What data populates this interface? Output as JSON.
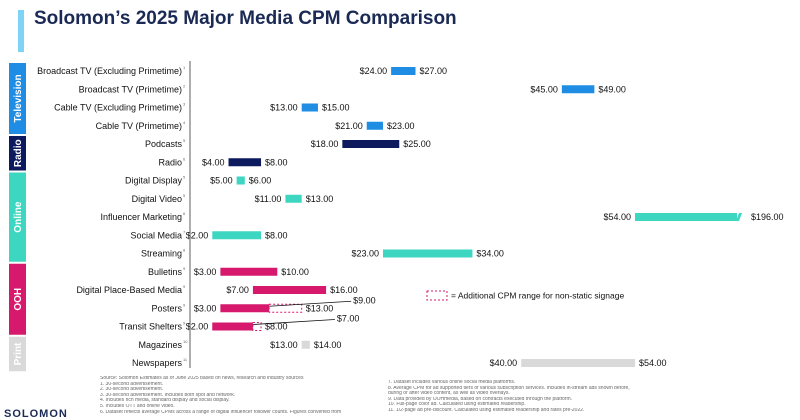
{
  "title": "Solomon’s 2025 Major Media CPM Comparison",
  "colors": {
    "tv": "#1f8de3",
    "radio": "#0d1a5e",
    "online": "#3dd6c1",
    "ooh": "#d6196c",
    "print": "#d9d9d9",
    "accent": "#7fd3f4",
    "title": "#1b2a55"
  },
  "legend": {
    "text": "= Additional CPM range for non-static signage",
    "color": "#d6196c"
  },
  "chart_data": {
    "type": "bar",
    "title": "Solomon’s 2025 Major Media CPM Comparison",
    "xlabel": "",
    "ylabel": "",
    "value_format": "USD CPM",
    "groups": [
      {
        "name": "Television",
        "color": "#1f8de3",
        "rows": [
          {
            "label": "Broadcast TV (Excluding Primetime)",
            "fn": "1",
            "low": 24.0,
            "high": 27.0,
            "low_label": "$24.00",
            "high_label": "$27.00"
          },
          {
            "label": "Broadcast TV (Primetime)",
            "fn": "2",
            "low": 45.0,
            "high": 49.0,
            "low_label": "$45.00",
            "high_label": "$49.00"
          },
          {
            "label": "Cable TV (Excluding Primetime)",
            "fn": "3",
            "low": 13.0,
            "high": 15.0,
            "low_label": "$13.00",
            "high_label": "$15.00"
          },
          {
            "label": "Cable TV (Primetime)",
            "fn": "4",
            "low": 21.0,
            "high": 23.0,
            "low_label": "$21.00",
            "high_label": "$23.00"
          }
        ]
      },
      {
        "name": "Radio",
        "color": "#0d1a5e",
        "rows": [
          {
            "label": "Podcasts",
            "fn": "5",
            "low": 18.0,
            "high": 25.0,
            "low_label": "$18.00",
            "high_label": "$25.00"
          },
          {
            "label": "Radio",
            "fn": "6",
            "low": 4.0,
            "high": 8.0,
            "low_label": "$4.00",
            "high_label": "$8.00"
          }
        ]
      },
      {
        "name": "Online",
        "color": "#3dd6c1",
        "rows": [
          {
            "label": "Digital Display",
            "fn": "5",
            "low": 5.0,
            "high": 6.0,
            "low_label": "$5.00",
            "high_label": "$6.00"
          },
          {
            "label": "Digital Video",
            "fn": "5",
            "low": 11.0,
            "high": 13.0,
            "low_label": "$11.00",
            "high_label": "$13.00"
          },
          {
            "label": "Influencer Marketing",
            "fn": "6",
            "low": 54.0,
            "high": 196.0,
            "low_label": "$54.00",
            "high_label": "$196.00",
            "broken": true
          },
          {
            "label": "Social Media",
            "fn": "7",
            "low": 2.0,
            "high": 8.0,
            "low_label": "$2.00",
            "high_label": "$8.00"
          },
          {
            "label": "Streaming",
            "fn": "8",
            "low": 23.0,
            "high": 34.0,
            "low_label": "$23.00",
            "high_label": "$34.00"
          }
        ]
      },
      {
        "name": "OOH",
        "color": "#d6196c",
        "rows": [
          {
            "label": "Bulletins",
            "fn": "9",
            "low": 3.0,
            "high": 10.0,
            "low_label": "$3.00",
            "high_label": "$10.00"
          },
          {
            "label": "Digital Place-Based Media",
            "fn": "9",
            "low": 7.0,
            "high": 16.0,
            "low_label": "$7.00",
            "high_label": "$16.00"
          },
          {
            "label": "Posters",
            "fn": "9",
            "low": 3.0,
            "high": 9.0,
            "low_label": "$3.00",
            "high_label": "$9.00",
            "ext_high": 13.0,
            "ext_label": "$13.00"
          },
          {
            "label": "Transit Shelters",
            "fn": "9",
            "low": 2.0,
            "high": 7.0,
            "low_label": "$2.00",
            "high_label": "$7.00",
            "ext_high": 8.0,
            "ext_label": "$8.00"
          }
        ]
      },
      {
        "name": "Print",
        "color": "#d9d9d9",
        "rows": [
          {
            "label": "Magazines",
            "fn": "10",
            "low": 13.0,
            "high": 14.0,
            "low_label": "$13.00",
            "high_label": "$14.00"
          },
          {
            "label": "Newspapers",
            "fn": "11",
            "low": 40.0,
            "high": 54.0,
            "low_label": "$40.00",
            "high_label": "$54.00"
          }
        ]
      }
    ]
  },
  "footnotes": {
    "source": "Source: Solomon Estimates as of June 2025 based on news, research and industry sources",
    "left": [
      "1.    30-second advertisement.",
      "2.    30-second advertisement.",
      "3.    30-second advertisement. Includes both spot and network.",
      "4.    Includes rich media, standard display and social display.",
      "5.    Includes OTT and online video.",
      "6.    Dataset reflects average CPMs across a range of digital influencer follower counts. Figures converted from"
    ],
    "right": [
      "7.    Dataset includes various online social media platforms.",
      "8.    Average CPM for ad supported tiers of various subscription services. Includes in-stream ads shown before,",
      "        during or after video content, as well as video overlays.",
      "9.    Data provided by OOHmedia, based on contracts executed through the platform.",
      "10.  Full-page color ad. Calculated using estimated readership.",
      "11.  1/2-page ad pre-discount. Calculated using estimated readership and rates pre-2022."
    ]
  },
  "logo": "SOLOMON"
}
